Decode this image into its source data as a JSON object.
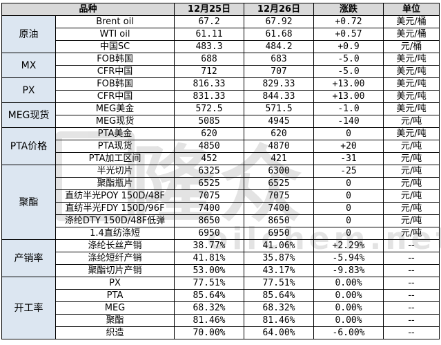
{
  "headers": [
    "品种",
    "12月25日",
    "12月26日",
    "涨跌",
    "单位"
  ],
  "groups": [
    {
      "name": "原油",
      "rows": [
        [
          "Brent oil",
          "67.2",
          "67.92",
          "+0.72",
          "美元/桶"
        ],
        [
          "WTI oil",
          "61.11",
          "61.68",
          "+0.57",
          "美元/桶"
        ],
        [
          "中国SC",
          "483.3",
          "484.2",
          "+0.9",
          "元/桶"
        ]
      ]
    },
    {
      "name": "MX",
      "rows": [
        [
          "FOB韩国",
          "688",
          "683",
          "-5.0",
          "美元/吨"
        ],
        [
          "CFR中国",
          "712",
          "707",
          "-5.0",
          "美元/吨"
        ]
      ]
    },
    {
      "name": "PX",
      "rows": [
        [
          "FOB韩国",
          "816.33",
          "829.33",
          "+13.00",
          "美元/吨"
        ],
        [
          "CFR中国",
          "831.33",
          "844.33",
          "+13.00",
          "美元/吨"
        ]
      ]
    },
    {
      "name": "MEG现货",
      "rows": [
        [
          "MEG美金",
          "572.5",
          "571.5",
          "-1.0",
          "美元/吨"
        ],
        [
          "MEG现货",
          "5085",
          "4945",
          "-140",
          "元/吨"
        ]
      ]
    },
    {
      "name": "PTA价格",
      "rows": [
        [
          "PTA美金",
          "620",
          "620",
          "0",
          "美元/吨"
        ],
        [
          "PTA现货",
          "4850",
          "4870",
          "+20",
          "元/吨"
        ],
        [
          "PTA加工区间",
          "452",
          "421",
          "-31",
          "元/吨"
        ]
      ]
    },
    {
      "name": "聚酯",
      "rows": [
        [
          "半光切片",
          "6325",
          "6300",
          "-25",
          "元/吨"
        ],
        [
          "聚酯瓶片",
          "6525",
          "6525",
          "0",
          "元/吨"
        ],
        [
          "直纺半光POY 150D/48F",
          "7075",
          "7075",
          "0",
          "元/吨"
        ],
        [
          "直纺半光FDY 150D/96F",
          "7400",
          "7400",
          "0",
          "元/吨"
        ],
        [
          "涤纶DTY 150D/48F低弹",
          "8650",
          "8650",
          "0",
          "元/吨"
        ],
        [
          "1.4直纺涤短",
          "6950",
          "6950",
          "0",
          "元/吨"
        ]
      ]
    },
    {
      "name": "产销率",
      "rows": [
        [
          "涤纶长丝产销",
          "38.77%",
          "41.06%",
          "+2.29%",
          "--"
        ],
        [
          "涤纶短纤产销",
          "41.81%",
          "35.87%",
          "-5.94%",
          "--"
        ],
        [
          "聚酯切片产销",
          "53.00%",
          "43.17%",
          "-9.83%",
          "--"
        ]
      ]
    },
    {
      "name": "开工率",
      "rows": [
        [
          "PX",
          "77.51%",
          "77.51%",
          "0.00%",
          "--"
        ],
        [
          "PTA",
          "85.64%",
          "85.64%",
          "0.00%",
          "--"
        ],
        [
          "MEG",
          "68.32%",
          "68.32%",
          "0.00%",
          "--"
        ],
        [
          "聚酯",
          "81.46%",
          "81.46%",
          "0.00%",
          "--"
        ],
        [
          "织造",
          "70.00%",
          "64.00%",
          "-6.00%",
          "--"
        ]
      ]
    }
  ],
  "watermark": {
    "text": "隆众",
    "url": "oilchem.net"
  }
}
